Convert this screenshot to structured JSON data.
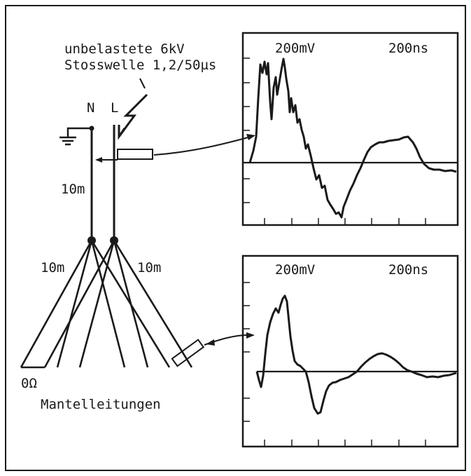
{
  "caption": {
    "line1": "unbelastete 6kV",
    "line2": "Stosswelle 1,2/50µs"
  },
  "labels": {
    "neutral": "N",
    "live": "L",
    "vertical_length": "10m",
    "left_length": "10m",
    "right_length": "10m",
    "zero_ohm": "0Ω",
    "cables": "Mantelleitungen"
  },
  "scope_top": {
    "volt_div": "200mV",
    "time_div": "200ns"
  },
  "scope_bottom": {
    "volt_div": "200mV",
    "time_div": "200ns"
  },
  "colors": {
    "ink": "#1a1a1a",
    "background": "#ffffff"
  }
}
